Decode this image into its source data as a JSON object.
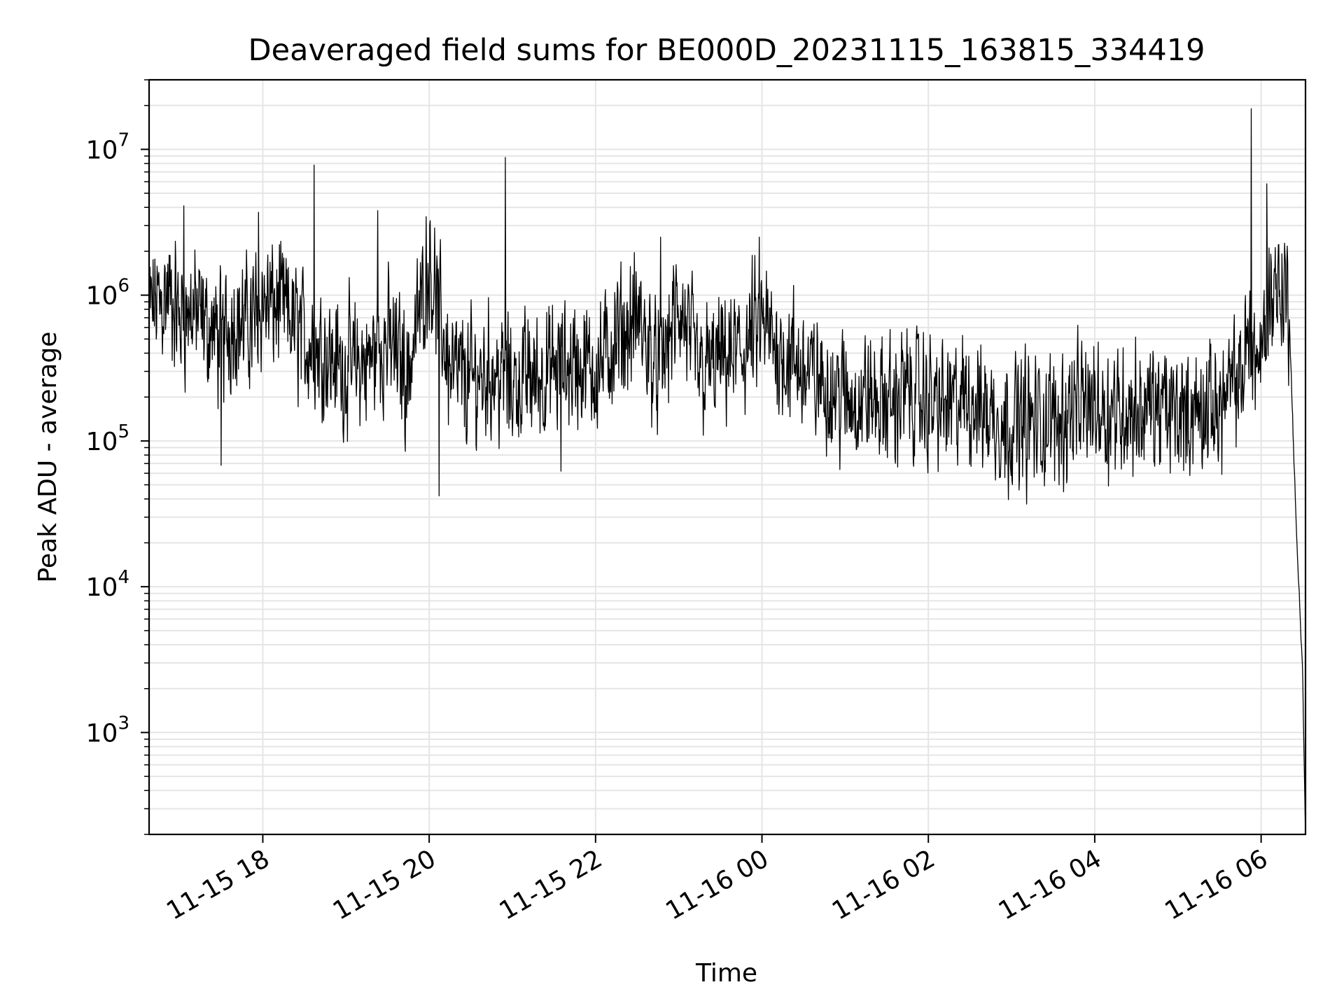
{
  "chart_data": {
    "type": "line",
    "title": "Deaveraged field sums for BE000D_20231115_163815_334419",
    "xlabel": "Time",
    "ylabel": "Peak ADU - average",
    "yscale": "log",
    "ylim": [
      200,
      30000000
    ],
    "xlim": [
      "2023-11-15T16:38",
      "2023-11-16T06:32"
    ],
    "grid": true,
    "line_color": "#000000",
    "grid_color": "#e5e5e5",
    "x_ticks": [
      {
        "value": "2023-11-15T18:00",
        "label": "11-15 18"
      },
      {
        "value": "2023-11-15T20:00",
        "label": "11-15 20"
      },
      {
        "value": "2023-11-15T22:00",
        "label": "11-15 22"
      },
      {
        "value": "2023-11-16T00:00",
        "label": "11-16 00"
      },
      {
        "value": "2023-11-16T02:00",
        "label": "11-16 02"
      },
      {
        "value": "2023-11-16T04:00",
        "label": "11-16 04"
      },
      {
        "value": "2023-11-16T06:00",
        "label": "11-16 06"
      }
    ],
    "y_ticks": [
      {
        "value": 1000,
        "base": "10",
        "exp": "3"
      },
      {
        "value": 10000,
        "base": "10",
        "exp": "4"
      },
      {
        "value": 100000,
        "base": "10",
        "exp": "5"
      },
      {
        "value": 1000000,
        "base": "10",
        "exp": "6"
      },
      {
        "value": 10000000,
        "base": "10",
        "exp": "7"
      }
    ],
    "series": [
      {
        "x": [
          "2023-11-15T16:38",
          "2023-11-15T16:45",
          "2023-11-15T16:52",
          "2023-11-15T17:00",
          "2023-11-15T17:10",
          "2023-11-15T17:20",
          "2023-11-15T17:30",
          "2023-11-15T17:40",
          "2023-11-15T17:50",
          "2023-11-15T18:00",
          "2023-11-15T18:15",
          "2023-11-15T18:30",
          "2023-11-15T18:45",
          "2023-11-15T19:00",
          "2023-11-15T19:15",
          "2023-11-15T19:30",
          "2023-11-15T19:45",
          "2023-11-15T20:00",
          "2023-11-15T20:15",
          "2023-11-15T20:30",
          "2023-11-15T20:45",
          "2023-11-15T21:00",
          "2023-11-15T21:15",
          "2023-11-15T21:30",
          "2023-11-15T21:45",
          "2023-11-15T22:00",
          "2023-11-15T22:15",
          "2023-11-15T22:30",
          "2023-11-15T22:45",
          "2023-11-15T23:00",
          "2023-11-15T23:15",
          "2023-11-15T23:30",
          "2023-11-15T23:45",
          "2023-11-16T00:00",
          "2023-11-16T00:15",
          "2023-11-16T00:30",
          "2023-11-16T00:45",
          "2023-11-16T01:00",
          "2023-11-16T01:15",
          "2023-11-16T01:30",
          "2023-11-16T01:45",
          "2023-11-16T02:00",
          "2023-11-16T02:15",
          "2023-11-16T02:30",
          "2023-11-16T02:45",
          "2023-11-16T03:00",
          "2023-11-16T03:15",
          "2023-11-16T03:30",
          "2023-11-16T03:45",
          "2023-11-16T04:00",
          "2023-11-16T04:15",
          "2023-11-16T04:30",
          "2023-11-16T04:45",
          "2023-11-16T05:00",
          "2023-11-16T05:15",
          "2023-11-16T05:30",
          "2023-11-16T05:45",
          "2023-11-16T05:50",
          "2023-11-16T05:55",
          "2023-11-16T06:00",
          "2023-11-16T06:05",
          "2023-11-16T06:10",
          "2023-11-16T06:15",
          "2023-11-16T06:20",
          "2023-11-16T06:25",
          "2023-11-16T06:28",
          "2023-11-16T06:30",
          "2023-11-16T06:31",
          "2023-11-16T06:32"
        ],
        "y": [
          800000,
          900000,
          1000000,
          700000,
          800000,
          600000,
          500000,
          700000,
          600000,
          900000,
          800000,
          500000,
          400000,
          300000,
          350000,
          500000,
          300000,
          1800000,
          300000,
          250000,
          300000,
          250000,
          280000,
          300000,
          350000,
          300000,
          500000,
          700000,
          300000,
          800000,
          300000,
          350000,
          400000,
          600000,
          400000,
          300000,
          250000,
          200000,
          200000,
          180000,
          220000,
          180000,
          170000,
          200000,
          150000,
          140000,
          130000,
          140000,
          160000,
          180000,
          170000,
          160000,
          170000,
          150000,
          160000,
          180000,
          250000,
          500000,
          400000,
          350000,
          900000,
          1200000,
          1100000,
          900000,
          30000,
          7000,
          2500,
          600,
          200
        ],
        "spikes": [
          {
            "x": "2023-11-15T18:37",
            "y": 7800000
          },
          {
            "x": "2023-11-15T19:23",
            "y": 3800000
          },
          {
            "x": "2023-11-15T20:55",
            "y": 8800000
          },
          {
            "x": "2023-11-15T22:47",
            "y": 2500000
          },
          {
            "x": "2023-11-15T23:58",
            "y": 2500000
          },
          {
            "x": "2023-11-16T05:53",
            "y": 19000000
          },
          {
            "x": "2023-11-16T06:04",
            "y": 5800000
          },
          {
            "x": "2023-11-15T17:03",
            "y": 4100000
          },
          {
            "x": "2023-11-15T17:57",
            "y": 3700000
          }
        ],
        "dips": [
          {
            "x": "2023-11-15T17:30",
            "y": 68000
          },
          {
            "x": "2023-11-15T20:07",
            "y": 42000
          },
          {
            "x": "2023-11-16T02:55",
            "y": 56000
          },
          {
            "x": "2023-11-16T04:10",
            "y": 49000
          },
          {
            "x": "2023-11-15T21:35",
            "y": 62000
          }
        ]
      }
    ]
  }
}
